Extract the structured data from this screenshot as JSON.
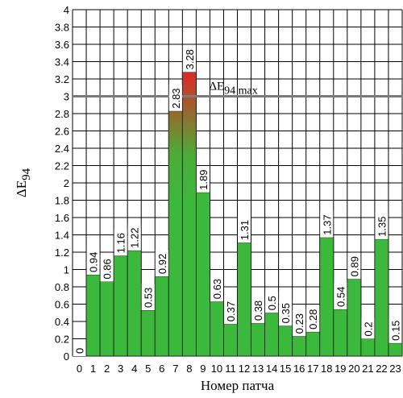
{
  "chart_data": {
    "type": "bar",
    "title": "",
    "xlabel": "Номер патча",
    "ylabel": "ΔE94",
    "ylim": [
      0,
      4
    ],
    "yticks": [
      "0",
      "0.2",
      "0.4",
      "0.6",
      "0.8",
      "1",
      "1.2",
      "1.4",
      "1.6",
      "1.8",
      "2",
      "2.2",
      "2.4",
      "2.6",
      "2.8",
      "3",
      "3.2",
      "3.4",
      "3.6",
      "3.8",
      "4"
    ],
    "grid": true,
    "categories": [
      "0",
      "1",
      "2",
      "3",
      "4",
      "5",
      "6",
      "7",
      "8",
      "9",
      "10",
      "11",
      "12",
      "13",
      "14",
      "15",
      "16",
      "17",
      "18",
      "19",
      "20",
      "21",
      "22",
      "23"
    ],
    "values": [
      0,
      0.94,
      0.86,
      1.16,
      1.22,
      0.53,
      0.92,
      2.83,
      3.28,
      1.89,
      0.63,
      0.37,
      1.31,
      0.38,
      0.5,
      0.35,
      0.23,
      0.28,
      1.37,
      0.54,
      0.89,
      0.2,
      1.35,
      0.15
    ],
    "labels": [
      "0",
      "0.94",
      "0.86",
      "1.16",
      "1.22",
      "0.53",
      "0.92",
      "2.83",
      "3.28",
      "1.89",
      "0.63",
      "0.37",
      "1.31",
      "0.38",
      "0.5",
      "0.35",
      "0.23",
      "0.28",
      "1.37",
      "0.54",
      "0.89",
      "0.2",
      "1.35",
      "0.15"
    ],
    "reference_line": {
      "value": 3,
      "label": "ΔE94 max"
    },
    "colors": {
      "bar_low": "#3cb83c",
      "bar_high": "#e02626",
      "bar_stroke": "#1a1a1a",
      "grid": "#000000",
      "reference": "#7a7a7a"
    }
  }
}
